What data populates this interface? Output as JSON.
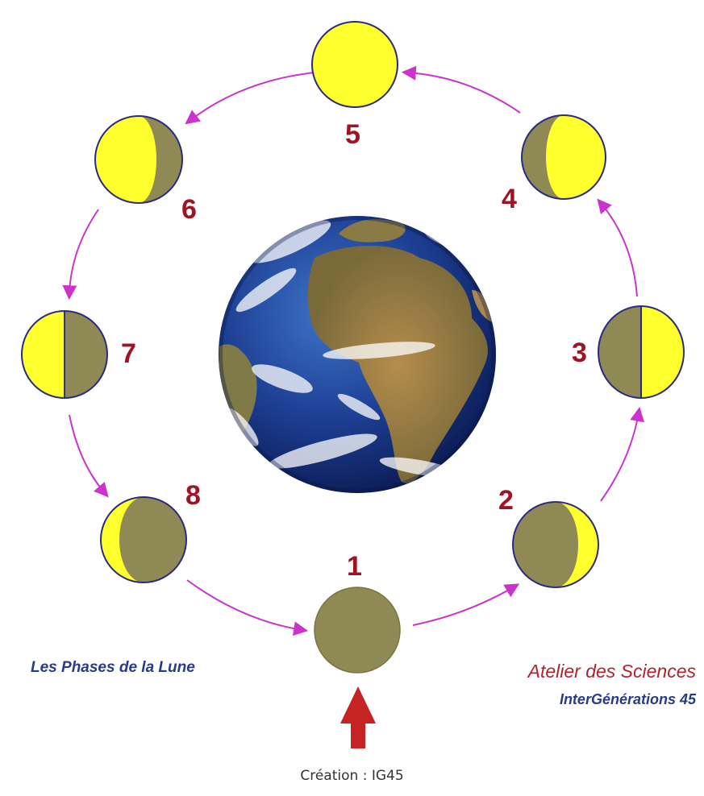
{
  "colors": {
    "moon_lit": "#ffff2e",
    "moon_dark": "#8f8a55",
    "moon_outline": "#2a2a80",
    "arrow": "#cc33cc",
    "phase_number": "#a01322",
    "sun_arrow": "#c62424",
    "title_blue": "#283a8c",
    "atelier_red": "#b0232f"
  },
  "phases": [
    {
      "number": "1",
      "illumination": "new-moon"
    },
    {
      "number": "2",
      "illumination": "waxing-crescent"
    },
    {
      "number": "3",
      "illumination": "first-quarter"
    },
    {
      "number": "4",
      "illumination": "waxing-gibbous"
    },
    {
      "number": "5",
      "illumination": "full-moon"
    },
    {
      "number": "6",
      "illumination": "waning-gibbous"
    },
    {
      "number": "7",
      "illumination": "last-quarter"
    },
    {
      "number": "8",
      "illumination": "waning-crescent"
    }
  ],
  "captions": {
    "title": "Les Phases de la Lune",
    "atelier": "Atelier des Sciences",
    "group": "InterGénérations 45",
    "credit": "Création : IG45"
  },
  "icons": {
    "earth": "earth-globe-icon",
    "sun_direction": "arrow-up-icon"
  }
}
